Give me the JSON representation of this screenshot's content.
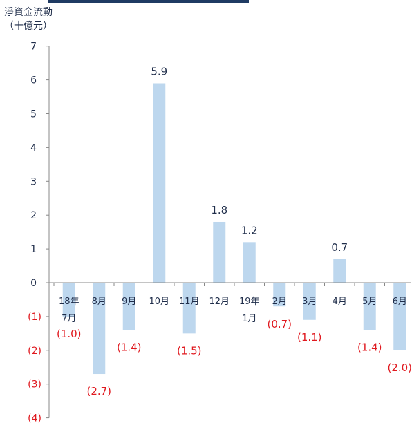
{
  "chart_data": {
    "type": "bar",
    "ylabel_line1": "淨資金流動",
    "ylabel_line2": "（十億元）",
    "categories": [
      [
        "18年",
        "7月"
      ],
      [
        "8月"
      ],
      [
        "9月"
      ],
      [
        "10月"
      ],
      [
        "11月"
      ],
      [
        "12月"
      ],
      [
        "19年",
        "1月"
      ],
      [
        "2月"
      ],
      [
        "3月"
      ],
      [
        "4月"
      ],
      [
        "5月"
      ],
      [
        "6月"
      ]
    ],
    "values": [
      -1.0,
      -2.7,
      -1.4,
      5.9,
      -1.5,
      1.8,
      1.2,
      -0.7,
      -1.1,
      0.7,
      -1.4,
      -2.0
    ],
    "value_labels": [
      "(1.0)",
      "(2.7)",
      "(1.4)",
      "5.9",
      "(1.5)",
      "1.8",
      "1.2",
      "(0.7)",
      "(1.1)",
      "0.7",
      "(1.4)",
      "(2.0)"
    ],
    "yticks": [
      7,
      6,
      5,
      4,
      3,
      2,
      1,
      0,
      -1,
      -2,
      -3,
      -4
    ],
    "ytick_labels": [
      "7",
      "6",
      "5",
      "4",
      "3",
      "2",
      "1",
      "0",
      "(1)",
      "(2)",
      "(3)",
      "(4)"
    ],
    "ylim": [
      -4,
      7
    ],
    "colors": {
      "bar": "#bdd7ee",
      "text": "#1f2d4a",
      "negative": "#e0191f",
      "axis": "#888888",
      "title_bar": "#1f3b63"
    }
  }
}
